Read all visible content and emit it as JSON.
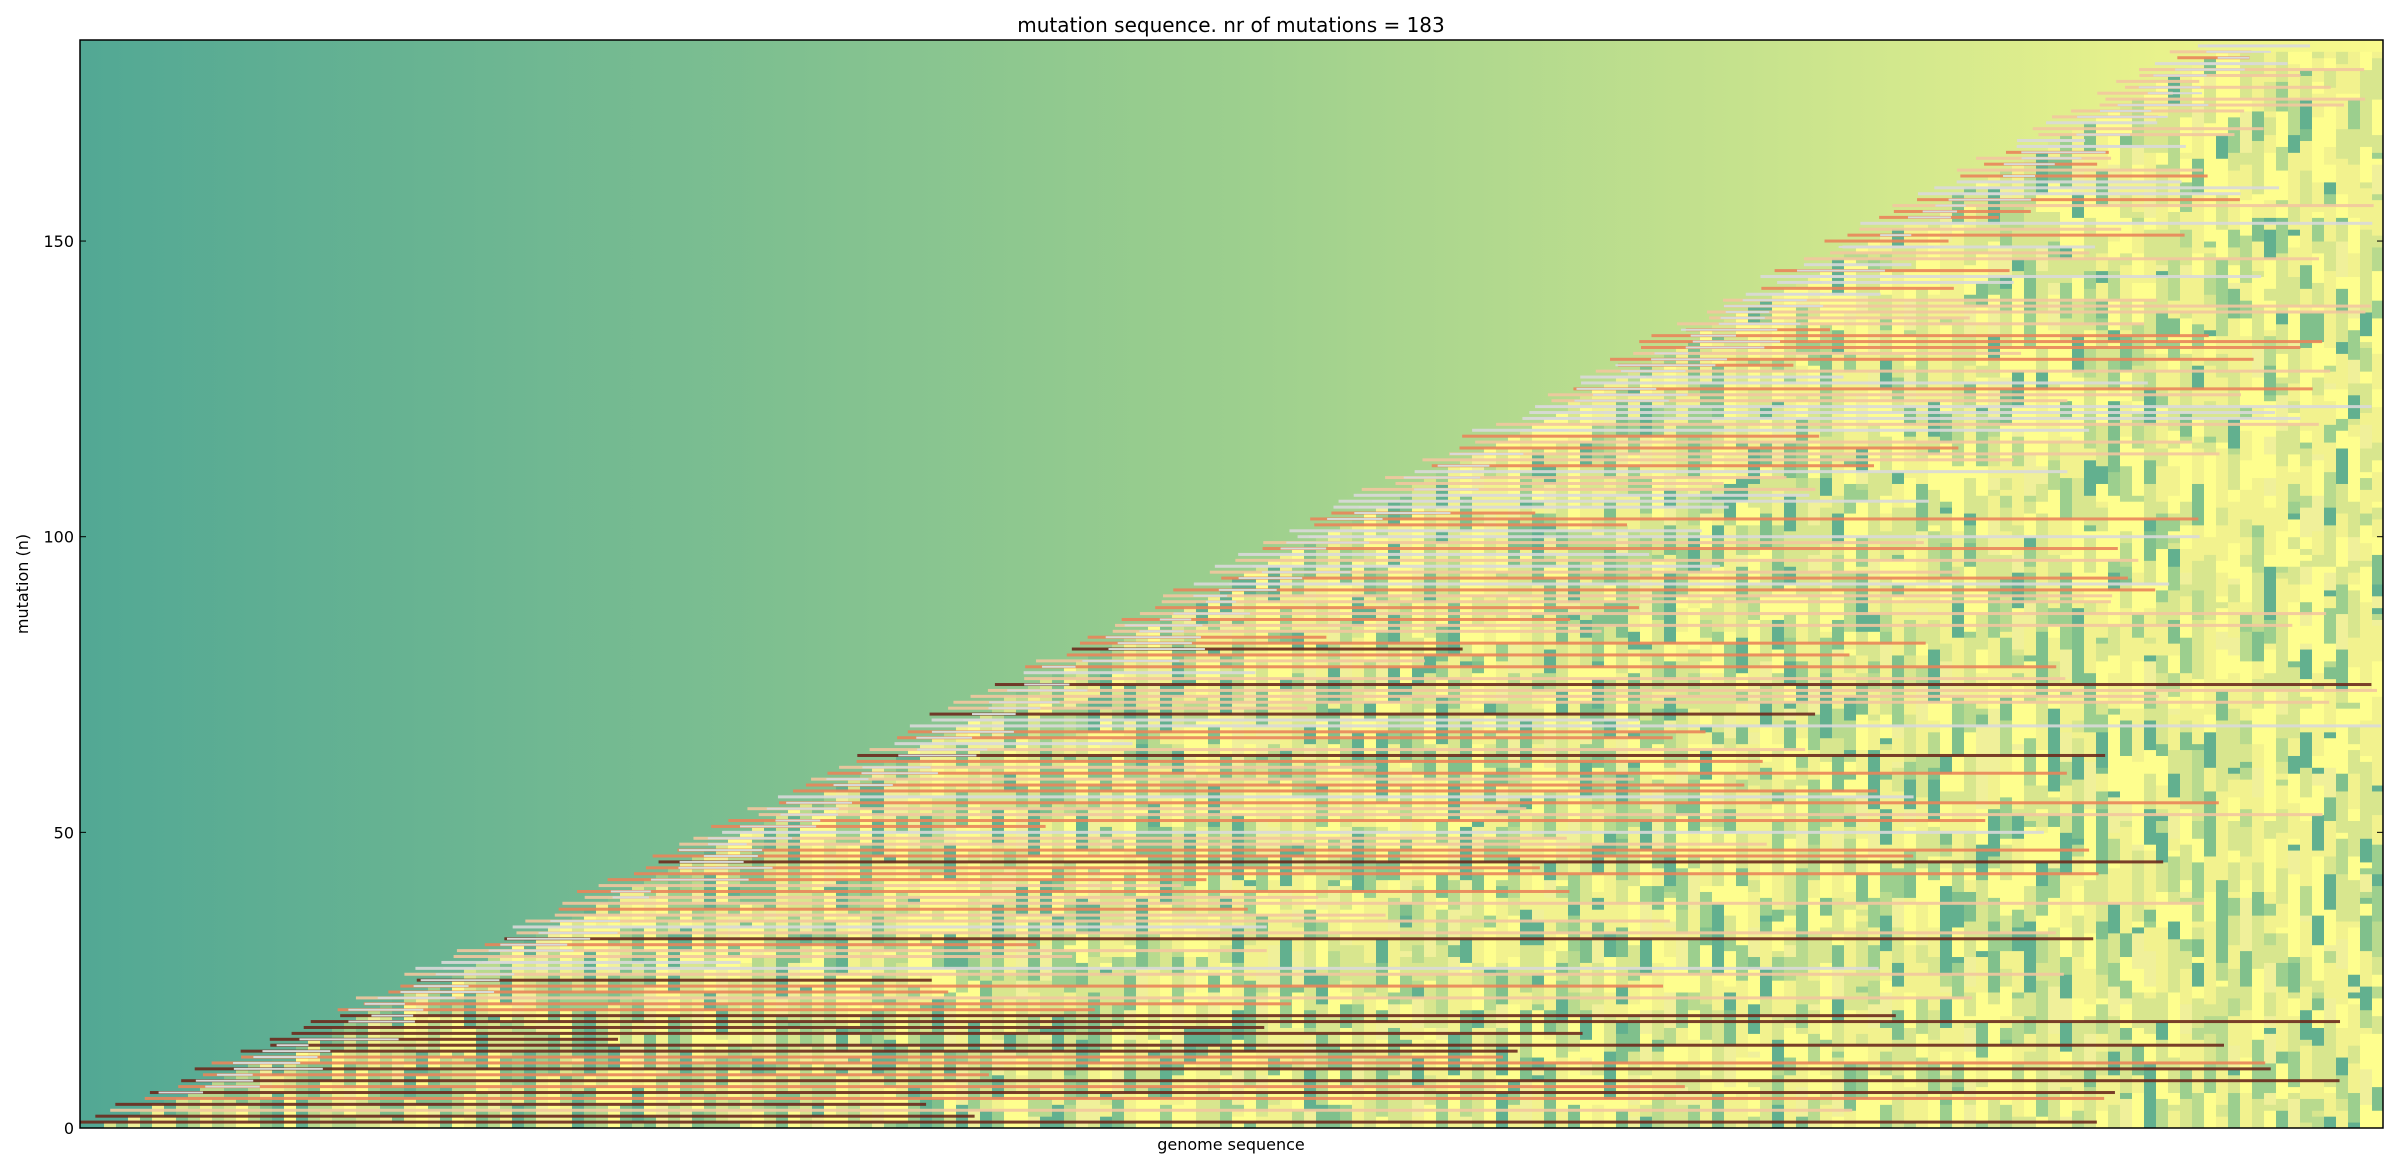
{
  "chart_data": {
    "type": "heatmap",
    "title": "mutation sequence. nr of mutations = 183",
    "xlabel": "genome sequence",
    "ylabel": "mutation (n)",
    "ylim": [
      0,
      184
    ],
    "yticks": [
      0,
      50,
      100,
      150
    ],
    "xticks": [],
    "grid": false,
    "legend": "none",
    "n_mutations": 183,
    "colors": {
      "background_left": "#52a894",
      "background_mid": "#9ccf8e",
      "background_right": "#fafa8c",
      "block_palette": [
        "#fefe8e",
        "#f2f28e",
        "#d8e68e",
        "#b8da8e",
        "#9ccf8e",
        "#80c08c",
        "#62b08f",
        "#f0f09a"
      ],
      "strip_light": "#f2c79e",
      "strip_medium": "#e9855a",
      "strip_dark": "#6b2a1d",
      "strip_pale": "#d9d9d9"
    }
  }
}
